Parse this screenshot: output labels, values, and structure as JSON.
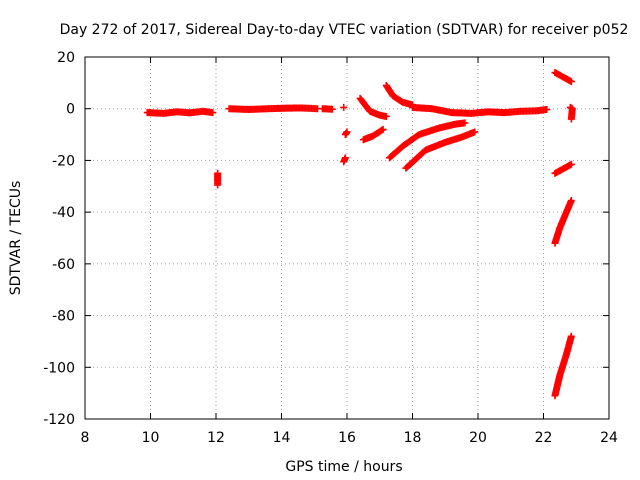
{
  "chart_data": {
    "type": "scatter",
    "title": "Day 272 of 2017, Sidereal Day-to-day VTEC variation (SDTVAR) for receiver p052",
    "xlabel": "GPS time / hours",
    "ylabel": "SDTVAR / TECUs",
    "xlim": [
      8,
      24
    ],
    "ylim": [
      -120,
      20
    ],
    "xticks": [
      8,
      10,
      12,
      14,
      16,
      18,
      20,
      22,
      24
    ],
    "yticks": [
      -120,
      -100,
      -80,
      -60,
      -40,
      -20,
      0,
      20
    ],
    "grid": true,
    "marker": "plus",
    "color": "#ff0000",
    "series": [
      {
        "name": "track-main",
        "x": [
          9.9,
          10.4,
          10.8,
          11.2,
          11.6,
          11.9
        ],
        "y": [
          -1.5,
          -1.8,
          -1.2,
          -1.6,
          -1.0,
          -1.5
        ]
      },
      {
        "name": "track-12-isolated",
        "x": [
          12.05,
          12.05
        ],
        "y": [
          -25,
          -29.5
        ]
      },
      {
        "name": "track-mid",
        "x": [
          12.4,
          13.0,
          13.6,
          14.1,
          14.6,
          15.1
        ],
        "y": [
          0,
          -0.3,
          0,
          0.2,
          0.3,
          0
        ]
      },
      {
        "name": "track-15-5",
        "x": [
          15.25,
          15.55
        ],
        "y": [
          0,
          -0.2
        ]
      },
      {
        "name": "track-15-9",
        "x": [
          15.9
        ],
        "y": [
          0.5
        ]
      },
      {
        "name": "track-16-a",
        "x": [
          15.95,
          16.0
        ],
        "y": [
          -10,
          -9
        ]
      },
      {
        "name": "track-16-b",
        "x": [
          15.9,
          15.95
        ],
        "y": [
          -20.5,
          -19
        ]
      },
      {
        "name": "track-16-5",
        "x": [
          16.4,
          16.7,
          17.0,
          17.2
        ],
        "y": [
          4,
          -1,
          -2.5,
          -3
        ]
      },
      {
        "name": "track-17-up",
        "x": [
          16.5,
          16.8,
          17.1
        ],
        "y": [
          -12,
          -10.5,
          -8
        ]
      },
      {
        "name": "track-17-2",
        "x": [
          17.2,
          17.4,
          17.7,
          18.0
        ],
        "y": [
          9,
          5,
          2.5,
          1.5
        ]
      },
      {
        "name": "track-arc-1",
        "x": [
          17.3,
          17.7,
          18.2,
          18.8,
          19.3,
          19.6
        ],
        "y": [
          -19,
          -14.5,
          -10,
          -7.5,
          -6,
          -5.5
        ]
      },
      {
        "name": "track-arc-2",
        "x": [
          17.8,
          18.4,
          19.0,
          19.5,
          19.9
        ],
        "y": [
          -23,
          -16,
          -13,
          -11,
          -9
        ]
      },
      {
        "name": "track-flat-r",
        "x": [
          18.0,
          18.6,
          19.2,
          19.8,
          20.3,
          20.8,
          21.3,
          21.8,
          22.1
        ],
        "y": [
          0.5,
          0,
          -1.5,
          -1.8,
          -1.2,
          -1.5,
          -1.0,
          -0.8,
          -0.3
        ]
      },
      {
        "name": "track-22-a",
        "x": [
          22.35,
          22.85
        ],
        "y": [
          14,
          10.5
        ]
      },
      {
        "name": "track-22-b",
        "x": [
          22.35,
          22.85
        ],
        "y": [
          -25,
          -21.5
        ]
      },
      {
        "name": "track-22-c",
        "x": [
          22.35,
          22.5,
          22.7,
          22.85
        ],
        "y": [
          -52,
          -46,
          -40,
          -35.5
        ]
      },
      {
        "name": "track-22-d",
        "x": [
          22.35,
          22.5,
          22.7,
          22.85
        ],
        "y": [
          -111,
          -103,
          -95,
          -88
        ]
      },
      {
        "name": "track-22-e",
        "x": [
          22.82,
          22.88,
          22.85
        ],
        "y": [
          0.5,
          0,
          -4
        ]
      }
    ]
  }
}
